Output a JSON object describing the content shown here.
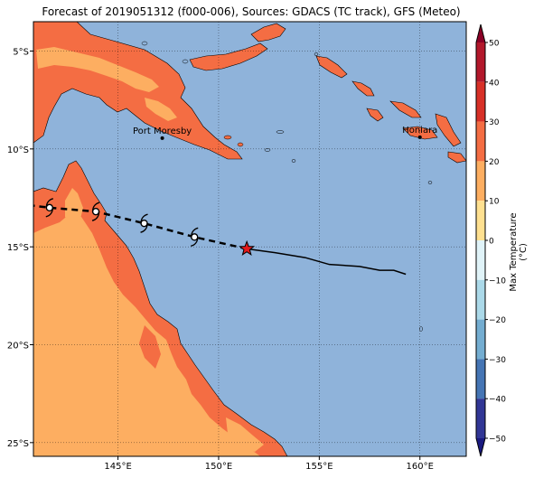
{
  "title": "Forecast of 2019051312 (f000-006), Sources: GDACS (TC track), GFS (Meteo)",
  "map": {
    "lon_range": [
      140.8,
      162.3
    ],
    "lat_range": [
      -25.7,
      -3.5
    ],
    "lon_ticks": [
      {
        "value": 145,
        "label": "145°E"
      },
      {
        "value": 150,
        "label": "150°E"
      },
      {
        "value": 155,
        "label": "155°E"
      },
      {
        "value": 160,
        "label": "160°E"
      }
    ],
    "lat_ticks": [
      {
        "value": -5,
        "label": "5°S"
      },
      {
        "value": -10,
        "label": "10°S"
      },
      {
        "value": -15,
        "label": "15°S"
      },
      {
        "value": -20,
        "label": "20°S"
      },
      {
        "value": -25,
        "label": "25°S"
      }
    ],
    "grid": "dotted",
    "colors": {
      "ocean": "#8fb3da",
      "land_hot": "#f46d43",
      "land_warm": "#fdae61",
      "coast": "#000000"
    }
  },
  "cities": [
    {
      "name": "Port Moresby",
      "lon": 147.2,
      "lat": -9.45
    },
    {
      "name": "Honiara",
      "lon": 160.0,
      "lat": -9.4
    }
  ],
  "tc_track": {
    "current": {
      "lon": 151.4,
      "lat": -15.1
    },
    "forecast": [
      {
        "lon": 151.4,
        "lat": -15.1
      },
      {
        "lon": 148.8,
        "lat": -14.5
      },
      {
        "lon": 146.3,
        "lat": -13.8
      },
      {
        "lon": 143.9,
        "lat": -13.2
      },
      {
        "lon": 141.6,
        "lat": -13.0
      },
      {
        "lon": 140.8,
        "lat": -12.9
      }
    ],
    "forecast_symbols": [
      {
        "lon": 148.8,
        "lat": -14.5
      },
      {
        "lon": 146.3,
        "lat": -13.8
      },
      {
        "lon": 143.9,
        "lat": -13.2
      },
      {
        "lon": 141.6,
        "lat": -13.0
      }
    ],
    "past": [
      {
        "lon": 151.4,
        "lat": -15.1
      },
      {
        "lon": 152.8,
        "lat": -15.3
      },
      {
        "lon": 154.3,
        "lat": -15.55
      },
      {
        "lon": 155.5,
        "lat": -15.9
      },
      {
        "lon": 157.0,
        "lat": -16.0
      },
      {
        "lon": 158.0,
        "lat": -16.2
      },
      {
        "lon": 158.7,
        "lat": -16.2
      },
      {
        "lon": 159.3,
        "lat": -16.4
      }
    ]
  },
  "colorbar": {
    "label": "Max Temperature (°C)",
    "min": -55,
    "max": 55,
    "ticks": [
      50,
      40,
      30,
      20,
      10,
      0,
      -10,
      -20,
      -30,
      -40,
      -50
    ],
    "levels": [
      {
        "from": 50,
        "to": 55,
        "color": "#8a0026"
      },
      {
        "from": 40,
        "to": 50,
        "color": "#b2182b"
      },
      {
        "from": 30,
        "to": 40,
        "color": "#d73027"
      },
      {
        "from": 20,
        "to": 30,
        "color": "#f46d43"
      },
      {
        "from": 10,
        "to": 20,
        "color": "#fdae61"
      },
      {
        "from": 0,
        "to": 10,
        "color": "#fee090"
      },
      {
        "from": -10,
        "to": 0,
        "color": "#e0f3f8"
      },
      {
        "from": -20,
        "to": -10,
        "color": "#abd9e9"
      },
      {
        "from": -30,
        "to": -20,
        "color": "#74add1"
      },
      {
        "from": -40,
        "to": -30,
        "color": "#4575b4"
      },
      {
        "from": -50,
        "to": -40,
        "color": "#313695"
      },
      {
        "from": -55,
        "to": -50,
        "color": "#1a1a80"
      }
    ]
  }
}
